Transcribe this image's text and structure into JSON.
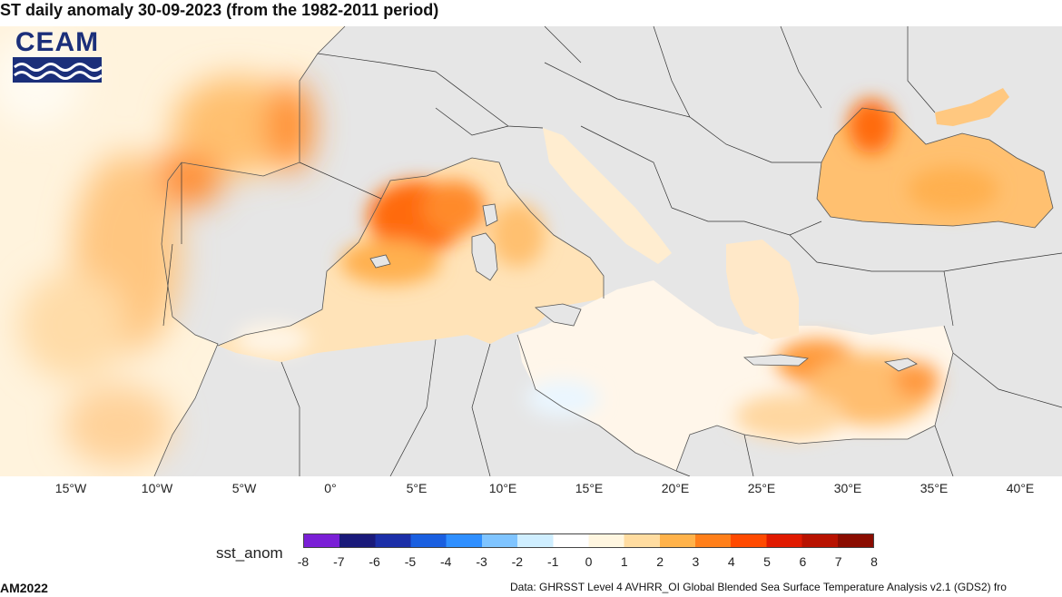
{
  "title": "ST daily anomaly 30-09-2023 (from the 1982-2011 period)",
  "logo": {
    "text": "CEAM",
    "color": "#1b2f7a"
  },
  "map": {
    "longitude_ticks": [
      "15°W",
      "10°W",
      "5°W",
      "0°",
      "5°E",
      "10°E",
      "15°E",
      "20°E",
      "25°E",
      "30°E",
      "35°E",
      "40°E"
    ],
    "land_color": "#e6e6e6",
    "border_color": "#333333"
  },
  "colorbar": {
    "label": "sst_anom",
    "ticks": [
      "-8",
      "-7",
      "-6",
      "-5",
      "-4",
      "-3",
      "-2",
      "-1",
      "0",
      "1",
      "2",
      "3",
      "4",
      "5",
      "6",
      "7",
      "8"
    ],
    "colors": [
      "#7a1fd6",
      "#1a1a7a",
      "#1c2fa8",
      "#1a5fe0",
      "#2f8fff",
      "#7fc4ff",
      "#cfeeff",
      "#ffffff",
      "#fff6e0",
      "#ffdca0",
      "#ffb24a",
      "#ff7f1a",
      "#ff4a00",
      "#e01a00",
      "#b81200",
      "#8a0c00"
    ]
  },
  "footer": {
    "left": "AM2022",
    "right": "Data: GHRSST Level 4 AVHRR_OI Global Blended Sea Surface Temperature Analysis v2.1 (GDS2) fro"
  }
}
